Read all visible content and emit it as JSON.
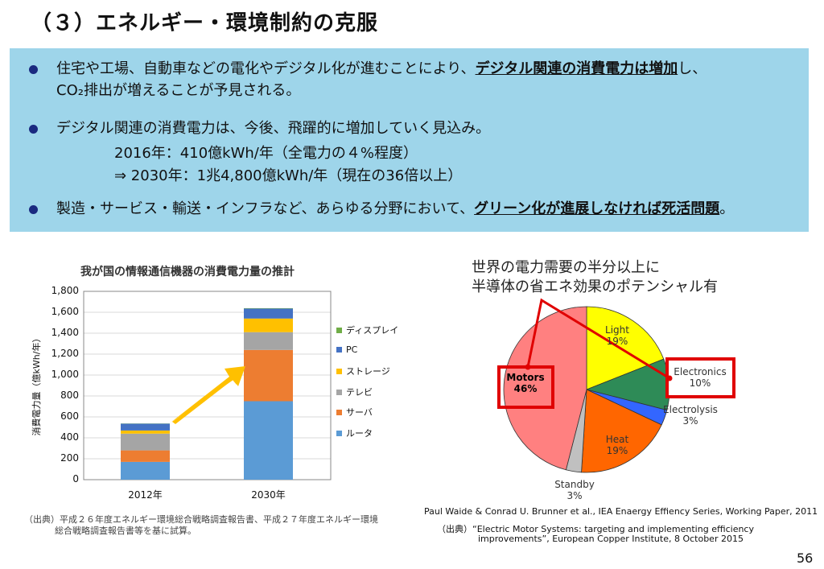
{
  "title": "（３）エネルギー・環境制約の克服",
  "bullets": [
    {
      "pre": "住宅や工場、自動車などの電化やデジタル化が進むことにより、",
      "em": "デジタル関連の消費電力は増加",
      "post": "し、",
      "line2": "CO₂排出が増えることが予見される。"
    },
    {
      "text": "デジタル関連の消費電力は、今後、飛躍的に増加していく見込み。",
      "sub1": "2016年：410億kWh/年（全電力の４%程度）",
      "sub2": "⇒  2030年：1兆4,800億kWh/年（現在の36倍以上）"
    },
    {
      "pre": "製造・サービス・輸送・インフラなど、あらゆる分野において、",
      "em": "グリーン化が進展しなければ死活問題",
      "post": "。"
    }
  ],
  "chart_data": [
    {
      "type": "bar",
      "stacked": true,
      "title": "我が国の情報通信機器の消費電力量の推計",
      "ylabel": "消費電力量（億kWh/年）",
      "xlabel": "",
      "categories": [
        "2012年",
        "2030年"
      ],
      "ylim": [
        0,
        1800
      ],
      "yticks": [
        "0",
        "200",
        "400",
        "600",
        "800",
        "1,000",
        "1,200",
        "1,400",
        "1,600",
        "1,800"
      ],
      "legend": "right",
      "series": [
        {
          "name": "ルータ",
          "color": "#5b9bd5",
          "values": [
            170,
            750
          ]
        },
        {
          "name": "サーバ",
          "color": "#ed7d31",
          "values": [
            110,
            490
          ]
        },
        {
          "name": "テレビ",
          "color": "#a5a5a5",
          "values": [
            160,
            170
          ]
        },
        {
          "name": "ストレージ",
          "color": "#ffc000",
          "values": [
            30,
            130
          ]
        },
        {
          "name": "PC",
          "color": "#4472c4",
          "values": [
            65,
            95
          ]
        },
        {
          "name": "ディスプレイ",
          "color": "#70ad47",
          "values": [
            2,
            4
          ]
        }
      ],
      "source": "（出典）平成２６年度エネルギー環境総合戦略調査報告書、平成２７年度エネルギー環境",
      "source2": "総合戦略調査報告書等を基に試算。"
    },
    {
      "type": "pie",
      "title1": "世界の電力需要の半分以上に",
      "title2": "半導体の省エネ効果のポテンシャル有",
      "slices": [
        {
          "name": "Light",
          "value": 19,
          "label": "19%",
          "color": "#ffff00"
        },
        {
          "name": "Electronics",
          "value": 10,
          "label": "10%",
          "color": "#2e8b57"
        },
        {
          "name": "Electrolysis",
          "value": 3,
          "label": "3%",
          "color": "#3366ff"
        },
        {
          "name": "Heat",
          "value": 19,
          "label": "19%",
          "color": "#ff6600"
        },
        {
          "name": "Standby",
          "value": 3,
          "label": "3%",
          "color": "#c0c0c0"
        },
        {
          "name": "Motors",
          "value": 46,
          "label": "46%",
          "color": "#ff8080"
        }
      ],
      "highlight_color": "#e00000",
      "ref": "Paul Waide & Conrad U. Brunner et al., IEA Enaergy Effiency Series, Working Paper, 2011",
      "source": "（出典）“Electric Motor Systems: targeting and implementing efficiency",
      "source2": "improvements”,  European Copper Institute, 8 October 2015"
    }
  ],
  "page_number": "56"
}
